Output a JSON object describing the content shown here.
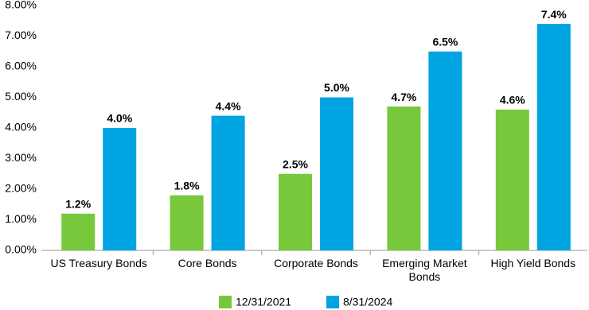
{
  "chart_data": {
    "type": "bar",
    "categories": [
      "US Treasury Bonds",
      "Core Bonds",
      "Corporate Bonds",
      "Emerging Market Bonds",
      "High Yield Bonds"
    ],
    "series": [
      {
        "name": "12/31/2021",
        "color": "#77c83a",
        "values": [
          1.2,
          1.8,
          2.5,
          4.7,
          4.6
        ],
        "value_labels": [
          "1.2%",
          "1.8%",
          "2.5%",
          "4.7%",
          "4.6%"
        ]
      },
      {
        "name": "8/31/2024",
        "color": "#00a4e0",
        "values": [
          4.0,
          4.4,
          5.0,
          6.5,
          7.4
        ],
        "value_labels": [
          "4.0%",
          "4.4%",
          "5.0%",
          "6.5%",
          "7.4%"
        ]
      }
    ],
    "ylim": [
      0,
      8
    ],
    "yticks": [
      {
        "value": 0,
        "label": "0.00%"
      },
      {
        "value": 1,
        "label": "1.00%"
      },
      {
        "value": 2,
        "label": "2.00%"
      },
      {
        "value": 3,
        "label": "3.00%"
      },
      {
        "value": 4,
        "label": "4.00%"
      },
      {
        "value": 5,
        "label": "5.00%"
      },
      {
        "value": 6,
        "label": "6.00%"
      },
      {
        "value": 7,
        "label": "7.00%"
      },
      {
        "value": 8,
        "label": "8.00%"
      }
    ],
    "grid": false,
    "legend": "bottom"
  }
}
